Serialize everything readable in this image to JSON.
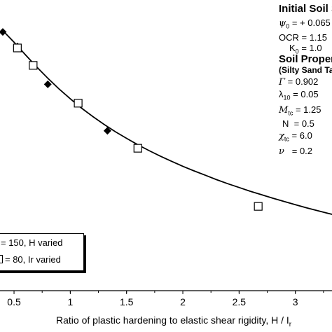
{
  "chart_data": {
    "type": "scatter",
    "xlabel": "Ratio of plastic hardening to elastic shear rigidity, H / I",
    "xlabel_subscript": "r",
    "xlim": [
      0.45,
      3.45
    ],
    "ylim": [
      0,
      1
    ],
    "x_ticks": [
      "0.5",
      "1",
      "1.5",
      "2",
      "2.5",
      "3"
    ],
    "x_tick_values": [
      0.5,
      1,
      1.5,
      2,
      2.5,
      3
    ],
    "series": [
      {
        "name": "= 150, H varied",
        "marker": "filled-diamond",
        "color": "#000000",
        "x": [
          0.4,
          0.53,
          0.8,
          1.33
        ],
        "y": [
          0.89,
          0.84,
          0.71,
          0.55
        ]
      },
      {
        "name": "= 80, Ir varied",
        "marker": "open-square",
        "color": "#000000",
        "x": [
          0.53,
          0.67,
          1.07,
          1.6,
          2.67
        ],
        "y": [
          0.835,
          0.775,
          0.645,
          0.49,
          0.29
        ]
      }
    ],
    "fit_curve": {
      "x": [
        0.4,
        0.5,
        0.6,
        0.7,
        0.8,
        0.9,
        1.0,
        1.1,
        1.2,
        1.3,
        1.4,
        1.5,
        1.6,
        1.7,
        1.8,
        1.9,
        2.0,
        2.1,
        2.2,
        2.3,
        2.4,
        2.5,
        2.6,
        2.7,
        2.8,
        2.9,
        3.0,
        3.1,
        3.2,
        3.3,
        3.4,
        3.45
      ],
      "y": [
        0.895,
        0.855,
        0.812,
        0.77,
        0.731,
        0.694,
        0.66,
        0.628,
        0.599,
        0.572,
        0.547,
        0.524,
        0.502,
        0.482,
        0.463,
        0.445,
        0.428,
        0.412,
        0.397,
        0.382,
        0.368,
        0.355,
        0.342,
        0.33,
        0.318,
        0.307,
        0.296,
        0.285,
        0.275,
        0.265,
        0.256,
        0.251
      ]
    }
  },
  "legend": {
    "row1": "= 150, H varied",
    "row2": "= 80, Ir varied"
  },
  "initial_state": {
    "title": "Initial Soil S",
    "psi_symbol": "ψ",
    "psi_sub": "0",
    "psi_value": "= + 0.065",
    "ocr": "OCR = 1.15",
    "k0_symbol": "K",
    "k0_sub": "0",
    "k0_value": "= 1.0"
  },
  "soil_props": {
    "title": "Soil Proper",
    "subtitle": "(Silty Sand Ta",
    "gamma_symbol": "Γ",
    "gamma_value": "= 0.902",
    "lambda_symbol": "λ",
    "lambda_sub": "10",
    "lambda_value": "= 0.05",
    "m_symbol": "M",
    "m_sub": "tc",
    "m_value": "= 1.25",
    "n_symbol": "N",
    "n_value": "= 0.5",
    "chi_symbol": "χ",
    "chi_sub": "tc",
    "chi_value": "= 6.0",
    "nu_symbol": "ν",
    "nu_value": "= 0.2"
  }
}
